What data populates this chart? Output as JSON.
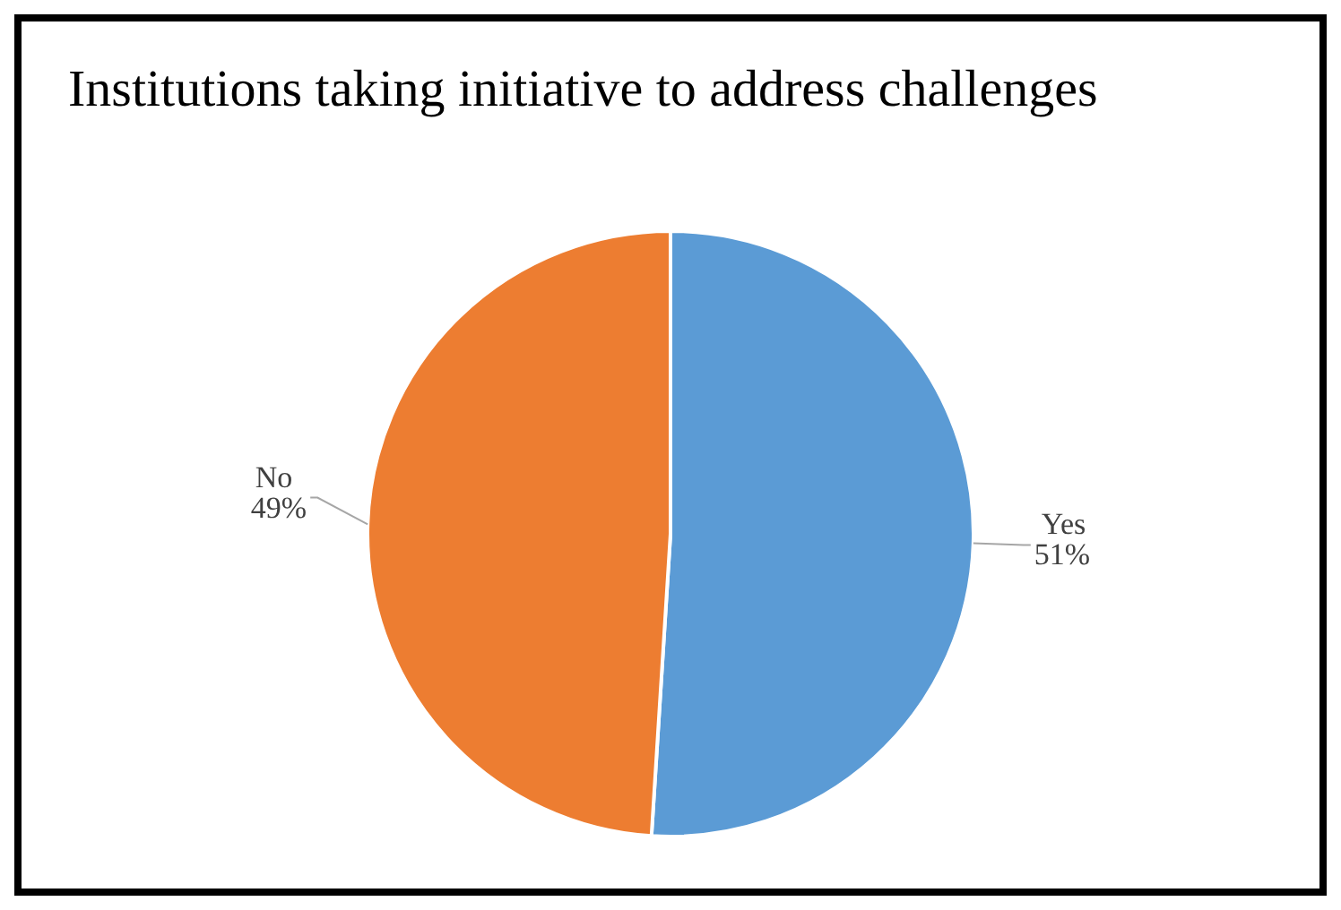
{
  "chart_data": {
    "type": "pie",
    "title": "Institutions taking initiative to address challenges",
    "categories": [
      "Yes",
      "No"
    ],
    "values": [
      51,
      49
    ],
    "colors": [
      "#5b9bd5",
      "#ed7d31"
    ],
    "value_labels": [
      "51%",
      "49%"
    ],
    "legend": false
  }
}
